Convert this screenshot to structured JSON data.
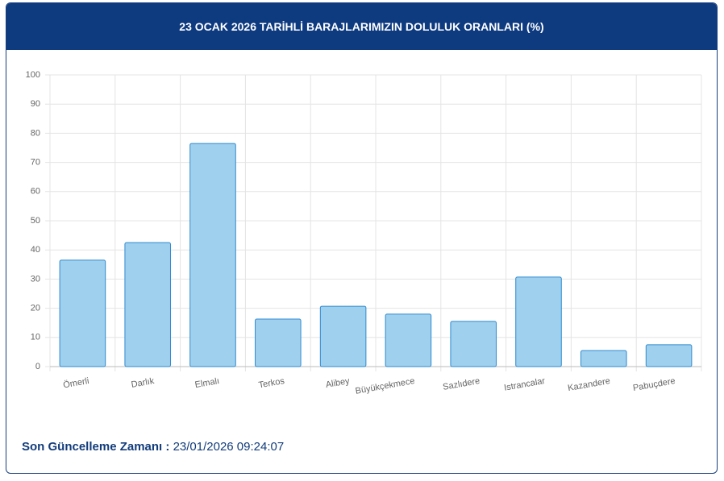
{
  "chart_data": {
    "type": "bar",
    "title": "23 OCAK 2026 TARİHLİ BARAJLARIMIZIN DOLULUK ORANLARI (%)",
    "categories": [
      "Ömerli",
      "Darlık",
      "Elmalı",
      "Terkos",
      "Alibey",
      "Büyükçekmece",
      "Sazlıdere",
      "Istrancalar",
      "Kazandere",
      "Pabuçdere"
    ],
    "values": [
      36.5,
      42.5,
      76.5,
      16.3,
      20.7,
      18.0,
      15.5,
      30.7,
      5.5,
      7.5
    ],
    "color": "#9fd0ee",
    "border_color": "#2f8ad0",
    "ylim": [
      0,
      100
    ],
    "yticks": [
      0,
      10,
      20,
      30,
      40,
      50,
      60,
      70,
      80,
      90,
      100
    ],
    "grid": true
  },
  "footer": {
    "label": "Son Güncelleme Zamanı :",
    "value": "23/01/2026 09:24:07"
  }
}
